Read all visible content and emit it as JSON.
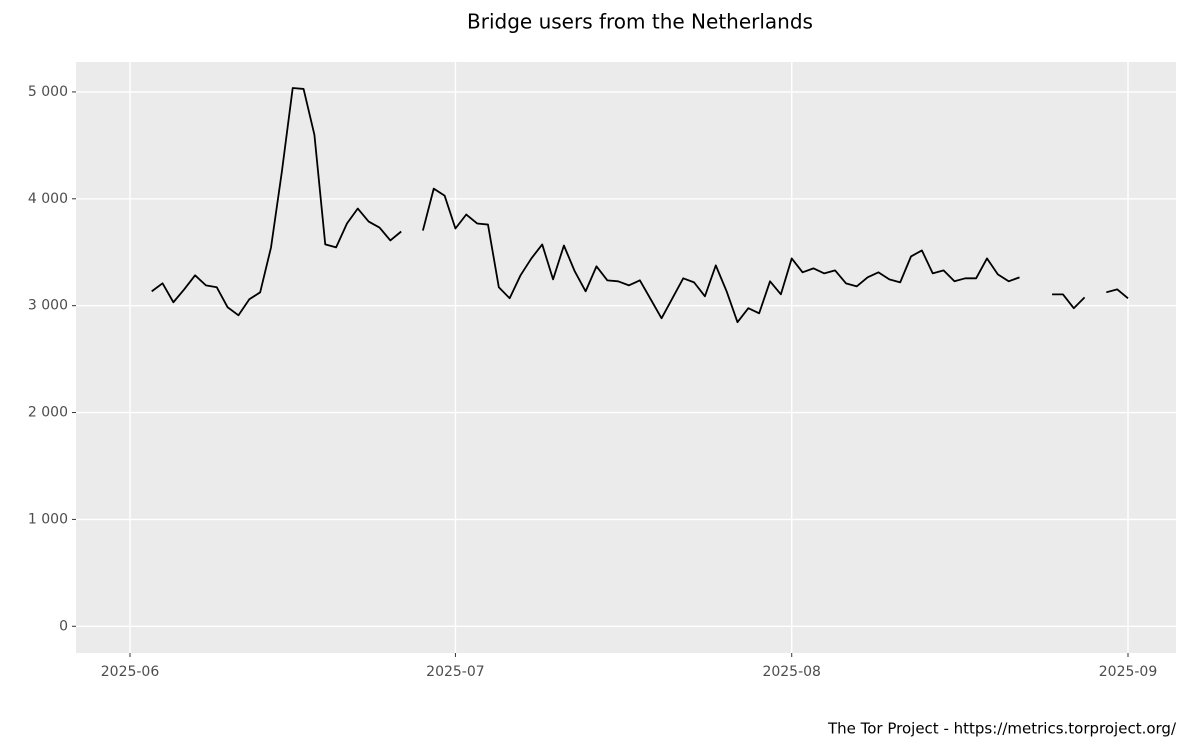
{
  "chart_data": {
    "type": "line",
    "title": "Bridge users from the Netherlands",
    "caption": "The Tor Project - https://metrics.torproject.org/",
    "categories": [
      "2025-06",
      null,
      null,
      null,
      null,
      null,
      null,
      null,
      null,
      null,
      null,
      null,
      null,
      null,
      null,
      null,
      null,
      null,
      null,
      null,
      null,
      null,
      null,
      null,
      null,
      null,
      null,
      null,
      null,
      null,
      "2025-07",
      null,
      null,
      null,
      null,
      null,
      null,
      null,
      null,
      null,
      null,
      null,
      null,
      null,
      null,
      null,
      null,
      null,
      null,
      null,
      null,
      null,
      null,
      null,
      null,
      null,
      null,
      null,
      null,
      null,
      null,
      "2025-08",
      null,
      null,
      null,
      null,
      null,
      null,
      null,
      null,
      null,
      null,
      null,
      null,
      null,
      null,
      null,
      null,
      null,
      null,
      null,
      null,
      null,
      null,
      null,
      null,
      null,
      null,
      null,
      null,
      null,
      null,
      "2025-09"
    ],
    "series": [
      {
        "name": "users",
        "color": "#000000",
        "values": [
          null,
          null,
          3134,
          3209,
          3032,
          3153,
          3284,
          3190,
          3172,
          2985,
          2910,
          3060,
          3125,
          3545,
          4254,
          5037,
          5028,
          4599,
          3573,
          3545,
          3769,
          3909,
          3787,
          3731,
          3610,
          3694,
          null,
          3703,
          4095,
          4030,
          3722,
          3853,
          3769,
          3759,
          3172,
          3069,
          3284,
          3442,
          3573,
          3246,
          3563,
          3321,
          3134,
          3368,
          3237,
          3228,
          3190,
          3237,
          3060,
          2882,
          3069,
          3256,
          3218,
          3088,
          3377,
          3134,
          2845,
          2976,
          2929,
          3228,
          3106,
          3442,
          3312,
          3349,
          3302,
          3330,
          3209,
          3181,
          3265,
          3312,
          3246,
          3218,
          3461,
          3517,
          3302,
          3330,
          3228,
          3256,
          3256,
          3442,
          3293,
          3228,
          3265,
          null,
          null,
          3106,
          3106,
          2976,
          3078,
          null,
          3125,
          3153,
          3069
        ]
      }
    ],
    "ylim": [
      -250,
      5280
    ],
    "yticks": [
      0,
      {
        "value": 1000,
        "label": "1 000"
      },
      {
        "value": 2000,
        "label": "2 000"
      },
      {
        "value": 3000,
        "label": "3 000"
      },
      {
        "value": 4000,
        "label": "4 000"
      },
      {
        "value": 5000,
        "label": "5 000"
      }
    ],
    "grid": true
  }
}
